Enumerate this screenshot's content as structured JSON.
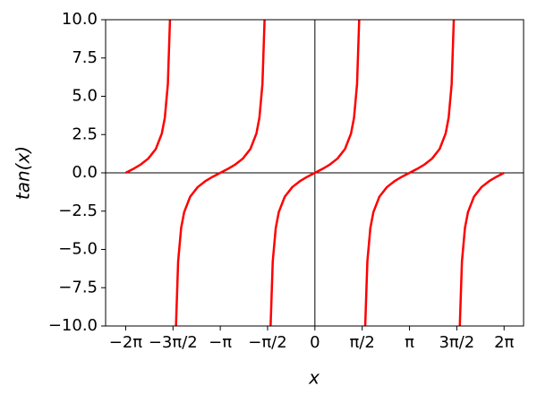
{
  "chart_data": {
    "type": "line",
    "xlabel": "x",
    "ylabel": "tan(x)",
    "xlim": [
      -6.95,
      6.93
    ],
    "ylim": [
      -10,
      10
    ],
    "xticks": [
      {
        "value": -6.283,
        "label": "−2π"
      },
      {
        "value": -4.712,
        "label": "−3π/2"
      },
      {
        "value": -3.142,
        "label": "−π"
      },
      {
        "value": -1.571,
        "label": "−π/2"
      },
      0,
      {
        "value": 1.571,
        "label": "π/2"
      },
      {
        "value": 3.142,
        "label": "π"
      },
      {
        "value": 4.712,
        "label": "3π/2"
      },
      {
        "value": 6.283,
        "label": "2π"
      }
    ],
    "yticks": [
      {
        "value": -10,
        "label": "−10.0"
      },
      {
        "value": -7.5,
        "label": "−7.5"
      },
      {
        "value": -5,
        "label": "−5.0"
      },
      {
        "value": -2.5,
        "label": "−2.5"
      },
      {
        "value": 0,
        "label": "0.0"
      },
      {
        "value": 2.5,
        "label": "2.5"
      },
      {
        "value": 5,
        "label": "5.0"
      },
      {
        "value": 7.5,
        "label": "7.5"
      },
      {
        "value": 10,
        "label": "10.0"
      }
    ],
    "x": [
      -6.283,
      -6.033,
      -5.783,
      -5.533,
      -5.283,
      -5.083,
      -4.983,
      -4.883,
      -4.812,
      -4.712,
      -4.613,
      -4.542,
      -4.442,
      -4.342,
      -4.142,
      -3.892,
      -3.642,
      -3.392,
      -3.142,
      -2.892,
      -2.642,
      -2.392,
      -2.142,
      -1.942,
      -1.842,
      -1.742,
      -1.671,
      -1.571,
      -1.471,
      -1.4,
      -1.3,
      -1.2,
      -1,
      -0.75,
      -0.5,
      -0.25,
      0,
      0.25,
      0.5,
      0.75,
      1,
      1.2,
      1.3,
      1.4,
      1.471,
      1.571,
      1.671,
      1.742,
      1.842,
      1.942,
      2.142,
      2.392,
      2.642,
      2.892,
      3.142,
      3.392,
      3.642,
      3.892,
      4.142,
      4.342,
      4.442,
      4.542,
      4.613,
      4.712,
      4.812,
      4.883,
      4.983,
      5.083,
      5.283,
      5.533,
      5.783,
      6.033,
      6.283
    ],
    "series": [
      {
        "color": "#ff0000",
        "values": [
          0,
          0.255,
          0.546,
          0.932,
          1.557,
          2.572,
          3.602,
          5.798,
          10,
          null,
          -10,
          -5.798,
          -3.602,
          -2.572,
          -1.557,
          -0.932,
          -0.546,
          -0.255,
          0,
          0.255,
          0.546,
          0.932,
          1.557,
          2.572,
          3.602,
          5.798,
          10,
          null,
          -10,
          -5.798,
          -3.602,
          -2.572,
          -1.557,
          -0.932,
          -0.546,
          -0.255,
          0,
          0.255,
          0.546,
          0.932,
          1.557,
          2.572,
          3.602,
          5.798,
          10,
          null,
          -10,
          -5.798,
          -3.602,
          -2.572,
          -1.557,
          -0.932,
          -0.546,
          -0.255,
          0,
          0.255,
          0.546,
          0.932,
          1.557,
          2.572,
          3.602,
          5.798,
          10,
          null,
          -10,
          -5.798,
          -3.602,
          -2.572,
          -1.557,
          -0.932,
          -0.546,
          -0.255,
          0
        ]
      }
    ]
  }
}
